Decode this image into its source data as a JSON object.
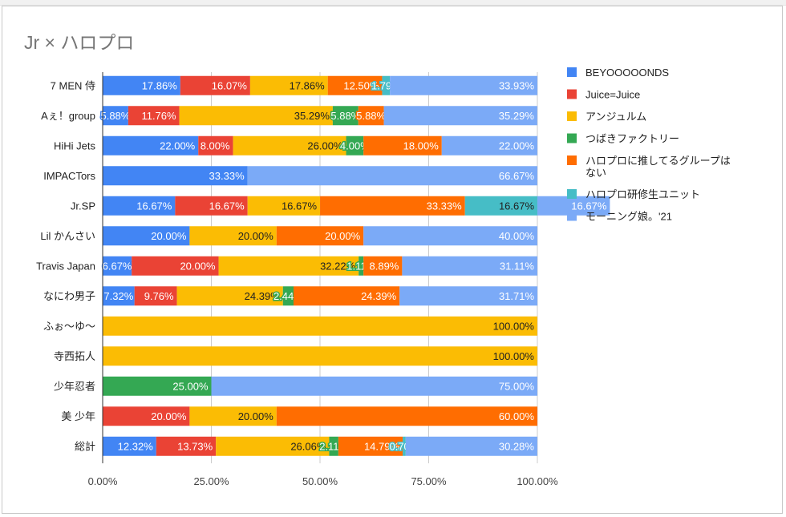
{
  "chart_title": "Jr × ハロプロ",
  "chart_data": {
    "type": "bar",
    "orientation": "horizontal",
    "stacked": "percent",
    "title": "Jr × ハロプロ",
    "categories": [
      "7 MEN 侍",
      "Aぇ！group",
      "HiHi Jets",
      "IMPACTors",
      "Jr.SP",
      "Lil かんさい",
      "Travis Japan",
      "なにわ男子",
      "ふぉ〜ゆ〜",
      "寺西拓人",
      "少年忍者",
      "美 少年",
      "総計"
    ],
    "series": [
      {
        "name": "BEYOOOOONDS",
        "color": "#4285f4",
        "values": [
          17.86,
          5.88,
          22.0,
          33.33,
          16.67,
          20.0,
          6.67,
          7.32,
          0,
          0,
          0,
          0,
          12.32
        ]
      },
      {
        "name": "Juice=Juice",
        "color": "#ea4335",
        "values": [
          16.07,
          11.76,
          8.0,
          0,
          16.67,
          0,
          20.0,
          9.76,
          0,
          0,
          0,
          20.0,
          13.73
        ]
      },
      {
        "name": "アンジュルム",
        "color": "#fbbc04",
        "values": [
          17.86,
          35.29,
          26.0,
          0,
          16.67,
          20.0,
          32.22,
          24.39,
          100.0,
          100.0,
          0,
          20.0,
          26.06
        ]
      },
      {
        "name": "つばきファクトリー",
        "color": "#34a853",
        "values": [
          0,
          5.88,
          4.0,
          0,
          0,
          0,
          1.11,
          2.44,
          0,
          0,
          25.0,
          0,
          2.11
        ]
      },
      {
        "name": "ハロプロに推してるグループはない",
        "color": "#ff6d01",
        "values": [
          12.5,
          5.88,
          18.0,
          0,
          33.33,
          20.0,
          8.89,
          24.39,
          0,
          0,
          0,
          60.0,
          14.79
        ]
      },
      {
        "name": "ハロプロ研修生ユニット",
        "color": "#46bdc6",
        "values": [
          1.79,
          0,
          0,
          0,
          16.67,
          0,
          0,
          0,
          0,
          0,
          0,
          0,
          0.7
        ]
      },
      {
        "name": "モーニング娘。'21",
        "color": "#7baaf7",
        "values": [
          33.93,
          35.29,
          22.0,
          66.67,
          16.67,
          40.0,
          31.11,
          31.71,
          0,
          0,
          75.0,
          0,
          30.28
        ]
      }
    ],
    "xlim": [
      0,
      100
    ],
    "x_ticks": [
      "0.00%",
      "25.00%",
      "50.00%",
      "75.00%",
      "100.00%"
    ],
    "grid": true,
    "legend_position": "right"
  },
  "legend_lines": [
    [
      "BEYOOOOONDS"
    ],
    [
      "Juice=Juice"
    ],
    [
      "アンジュルム"
    ],
    [
      "つばきファクトリー"
    ],
    [
      "ハロプロに推してるグループは",
      "ない"
    ],
    [
      "ハロプロ研修生ユニット"
    ],
    [
      "モーニング娘。'21"
    ]
  ]
}
